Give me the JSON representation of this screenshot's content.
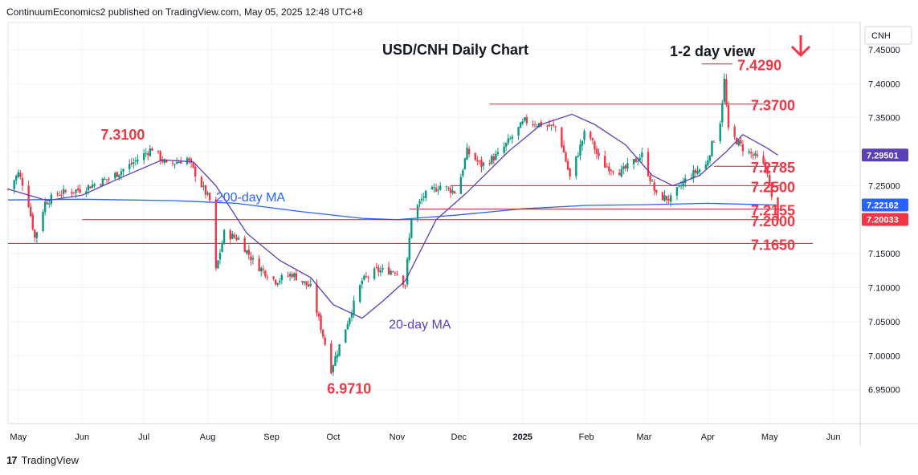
{
  "header": {
    "publisher": "ContinuumEconomics2 published on TradingView.com, May 05, 2025 12:48 UTC+8"
  },
  "footer": {
    "brand": "TradingView",
    "logo_mark": "17"
  },
  "colors": {
    "up": "#089981",
    "down": "#f23645",
    "level_line": "#b22833",
    "label_red": "#f23645",
    "ma200": "#2962ff",
    "ma20": "#5b3fb6",
    "arrow": "#f23645"
  },
  "chart_data": {
    "type": "candlestick",
    "title": "USD/CNH Daily Chart",
    "view_label": "1-2 day view",
    "view_direction": "down",
    "currency_badge": "CNH",
    "y_axis": {
      "range": [
        6.9,
        7.49
      ],
      "ticks": [
        "7.45000",
        "7.40000",
        "7.35000",
        "7.30000",
        "7.25000",
        "7.20000",
        "7.15000",
        "7.10000",
        "7.05000",
        "7.00000",
        "6.95000"
      ],
      "tick_values": [
        7.45,
        7.4,
        7.35,
        7.3,
        7.25,
        7.2,
        7.15,
        7.1,
        7.05,
        7.0,
        6.95
      ]
    },
    "x_axis": {
      "start_date": "2024-04-26",
      "end_date": "2025-06-14",
      "month_labels": [
        {
          "label": "May",
          "date": "2024-05-01"
        },
        {
          "label": "Jun",
          "date": "2024-06-01"
        },
        {
          "label": "Jul",
          "date": "2024-07-01"
        },
        {
          "label": "Aug",
          "date": "2024-08-01"
        },
        {
          "label": "Sep",
          "date": "2024-09-01"
        },
        {
          "label": "Oct",
          "date": "2024-10-01"
        },
        {
          "label": "Nov",
          "date": "2024-11-01"
        },
        {
          "label": "Dec",
          "date": "2024-12-01"
        },
        {
          "label": "2025",
          "date": "2025-01-01"
        },
        {
          "label": "Feb",
          "date": "2025-02-01"
        },
        {
          "label": "Mar",
          "date": "2025-03-01"
        },
        {
          "label": "Apr",
          "date": "2025-04-01"
        },
        {
          "label": "May",
          "date": "2025-05-01"
        },
        {
          "label": "Jun",
          "date": "2025-06-01"
        }
      ]
    },
    "price_badges": [
      {
        "label": "7.29501",
        "value": 7.295,
        "color": "#5b3fb6"
      },
      {
        "label": "7.22162",
        "value": 7.2216,
        "color": "#2962ff"
      },
      {
        "label": "7.20033",
        "value": 7.2003,
        "color": "#f23645"
      }
    ],
    "levels": [
      {
        "label": "7.4290",
        "value": 7.429,
        "from": "2025-03-29",
        "to": "2025-04-13"
      },
      {
        "label": "7.3700",
        "value": 7.37,
        "from": "2024-12-16",
        "to": "2025-04-29"
      },
      {
        "label": "7.2785",
        "value": 7.2785,
        "from": "2025-04-04",
        "to": "2025-05-06"
      },
      {
        "label": "7.2500",
        "value": 7.25,
        "from": "2024-11-27",
        "to": "2025-05-06"
      },
      {
        "label": "7.2155",
        "value": 7.2155,
        "from": "2024-11-07",
        "to": "2025-05-06"
      },
      {
        "label": "7.2000",
        "value": 7.2,
        "from": "2024-06-01",
        "to": "2025-05-06"
      },
      {
        "label": "7.1650",
        "value": 7.165,
        "from": "2024-04-26",
        "to": "2025-05-22"
      }
    ],
    "annotations": [
      {
        "label": "7.3100",
        "date": "2024-06-10",
        "value": 7.318,
        "color": "#f23645"
      },
      {
        "label": "6.9710",
        "date": "2024-09-28",
        "value": 6.944,
        "color": "#f23645"
      },
      {
        "label": "200-day MA",
        "date": "2024-08-05",
        "value": 7.227,
        "color": "#2962ff"
      },
      {
        "label": "20-day MA",
        "date": "2024-10-28",
        "value": 7.04,
        "color": "#5b3fb6"
      }
    ],
    "ma200": [
      [
        "2024-04-26",
        7.229
      ],
      [
        "2024-06-01",
        7.23
      ],
      [
        "2024-07-15",
        7.228
      ],
      [
        "2024-08-15",
        7.224
      ],
      [
        "2024-09-15",
        7.212
      ],
      [
        "2024-10-15",
        7.202
      ],
      [
        "2024-11-01",
        7.2
      ],
      [
        "2024-12-01",
        7.207
      ],
      [
        "2025-01-01",
        7.216
      ],
      [
        "2025-02-01",
        7.221
      ],
      [
        "2025-03-01",
        7.222
      ],
      [
        "2025-04-01",
        7.224
      ],
      [
        "2025-05-05",
        7.2216
      ]
    ],
    "ma20": [
      [
        "2024-04-26",
        7.245
      ],
      [
        "2024-05-15",
        7.228
      ],
      [
        "2024-06-01",
        7.236
      ],
      [
        "2024-06-20",
        7.262
      ],
      [
        "2024-07-10",
        7.288
      ],
      [
        "2024-07-25",
        7.285
      ],
      [
        "2024-08-05",
        7.25
      ],
      [
        "2024-08-20",
        7.18
      ],
      [
        "2024-09-05",
        7.14
      ],
      [
        "2024-09-20",
        7.115
      ],
      [
        "2024-10-01",
        7.075
      ],
      [
        "2024-10-15",
        7.055
      ],
      [
        "2024-10-25",
        7.08
      ],
      [
        "2024-11-05",
        7.11
      ],
      [
        "2024-11-20",
        7.2
      ],
      [
        "2024-12-05",
        7.24
      ],
      [
        "2024-12-25",
        7.3
      ],
      [
        "2025-01-10",
        7.34
      ],
      [
        "2025-01-25",
        7.355
      ],
      [
        "2025-02-05",
        7.34
      ],
      [
        "2025-02-20",
        7.31
      ],
      [
        "2025-03-05",
        7.265
      ],
      [
        "2025-03-15",
        7.25
      ],
      [
        "2025-03-28",
        7.265
      ],
      [
        "2025-04-10",
        7.3
      ],
      [
        "2025-04-18",
        7.325
      ],
      [
        "2025-04-30",
        7.305
      ],
      [
        "2025-05-05",
        7.295
      ]
    ],
    "price_path": [
      [
        "2024-04-26",
        7.245
      ],
      [
        "2024-05-01",
        7.268
      ],
      [
        "2024-05-05",
        7.24
      ],
      [
        "2024-05-09",
        7.173
      ],
      [
        "2024-05-14",
        7.225
      ],
      [
        "2024-05-20",
        7.238
      ],
      [
        "2024-06-01",
        7.245
      ],
      [
        "2024-06-15",
        7.262
      ],
      [
        "2024-06-25",
        7.282
      ],
      [
        "2024-07-05",
        7.305
      ],
      [
        "2024-07-12",
        7.28
      ],
      [
        "2024-07-22",
        7.29
      ],
      [
        "2024-07-27",
        7.262
      ],
      [
        "2024-08-02",
        7.228
      ],
      [
        "2024-08-05",
        7.125
      ],
      [
        "2024-08-09",
        7.18
      ],
      [
        "2024-08-16",
        7.172
      ],
      [
        "2024-08-24",
        7.135
      ],
      [
        "2024-09-03",
        7.11
      ],
      [
        "2024-09-11",
        7.12
      ],
      [
        "2024-09-20",
        7.1
      ],
      [
        "2024-09-26",
        7.03
      ],
      [
        "2024-09-30",
        6.98
      ],
      [
        "2024-10-08",
        7.05
      ],
      [
        "2024-10-15",
        7.11
      ],
      [
        "2024-10-22",
        7.125
      ],
      [
        "2024-10-31",
        7.125
      ],
      [
        "2024-11-05",
        7.105
      ],
      [
        "2024-11-08",
        7.205
      ],
      [
        "2024-11-14",
        7.235
      ],
      [
        "2024-11-22",
        7.25
      ],
      [
        "2024-11-30",
        7.24
      ],
      [
        "2024-12-05",
        7.3
      ],
      [
        "2024-12-12",
        7.28
      ],
      [
        "2024-12-20",
        7.295
      ],
      [
        "2025-01-02",
        7.345
      ],
      [
        "2025-01-10",
        7.34
      ],
      [
        "2025-01-18",
        7.335
      ],
      [
        "2025-01-24",
        7.262
      ],
      [
        "2025-02-01",
        7.335
      ],
      [
        "2025-02-08",
        7.282
      ],
      [
        "2025-02-18",
        7.27
      ],
      [
        "2025-02-28",
        7.295
      ],
      [
        "2025-03-07",
        7.235
      ],
      [
        "2025-03-14",
        7.23
      ],
      [
        "2025-03-22",
        7.262
      ],
      [
        "2025-03-31",
        7.28
      ],
      [
        "2025-04-03",
        7.31
      ],
      [
        "2025-04-07",
        7.345
      ],
      [
        "2025-04-09",
        7.405
      ],
      [
        "2025-04-11",
        7.33
      ],
      [
        "2025-04-18",
        7.305
      ],
      [
        "2025-04-25",
        7.29
      ],
      [
        "2025-04-30",
        7.272
      ],
      [
        "2025-05-02",
        7.23
      ],
      [
        "2025-05-05",
        7.2
      ]
    ]
  }
}
